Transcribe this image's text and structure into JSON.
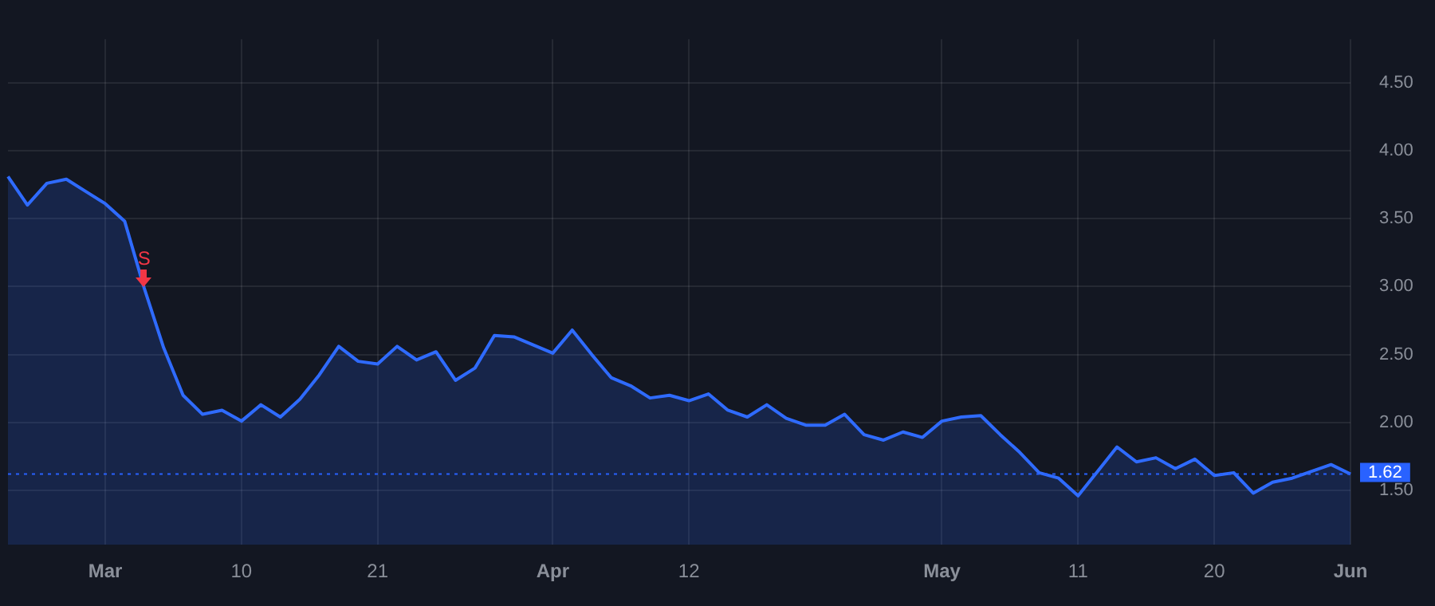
{
  "chart_data": {
    "type": "area",
    "categories": [
      null,
      null,
      null,
      null,
      null,
      "Mar",
      null,
      null,
      null,
      null,
      null,
      null,
      "10",
      null,
      null,
      null,
      null,
      null,
      null,
      "21",
      null,
      null,
      null,
      null,
      null,
      null,
      null,
      null,
      "Apr",
      null,
      null,
      null,
      null,
      null,
      null,
      "12",
      null,
      null,
      null,
      null,
      null,
      null,
      null,
      null,
      null,
      null,
      null,
      null,
      "May",
      null,
      null,
      null,
      null,
      null,
      null,
      "11",
      null,
      null,
      null,
      null,
      null,
      null,
      "20",
      null,
      null,
      null,
      null,
      null,
      null,
      "Jun"
    ],
    "series": [
      {
        "color": "#2f6bff",
        "values": [
          3.81,
          3.6,
          3.76,
          3.79,
          3.7,
          3.61,
          3.48,
          2.99,
          2.55,
          2.2,
          2.06,
          2.09,
          2.01,
          2.13,
          2.04,
          2.17,
          2.35,
          2.56,
          2.45,
          2.43,
          2.56,
          2.46,
          2.52,
          2.31,
          2.4,
          2.64,
          2.63,
          2.57,
          2.51,
          2.68,
          2.5,
          2.33,
          2.27,
          2.18,
          2.2,
          2.16,
          2.21,
          2.09,
          2.04,
          2.13,
          2.03,
          1.98,
          1.98,
          2.06,
          1.91,
          1.87,
          1.93,
          1.89,
          2.01,
          2.04,
          2.05,
          1.91,
          1.78,
          1.63,
          1.59,
          1.46,
          1.64,
          1.82,
          1.71,
          1.74,
          1.66,
          1.73,
          1.61,
          1.63,
          1.48,
          1.56,
          1.59,
          1.64,
          1.69,
          1.62
        ]
      }
    ],
    "ylim": [
      1.1,
      4.82
    ],
    "yticks": [
      {
        "value": 1.5,
        "label": "1.50"
      },
      {
        "value": 2,
        "label": "2.00"
      },
      {
        "value": 2.5,
        "label": "2.50"
      },
      {
        "value": 3,
        "label": "3.00"
      },
      {
        "value": 3.5,
        "label": "3.50"
      },
      {
        "value": 4,
        "label": "4.00"
      },
      {
        "value": 4.5,
        "label": "4.50"
      }
    ],
    "grid": true,
    "legend": false,
    "marker": "none",
    "line_style": "solid",
    "ref_lines": [
      {
        "axis": "y",
        "value": 1.62,
        "label": "1.62",
        "color": "#2962ff",
        "line_style": "dotted"
      }
    ],
    "annotations": [
      {
        "text": "S",
        "y": 2.99
      }
    ]
  }
}
